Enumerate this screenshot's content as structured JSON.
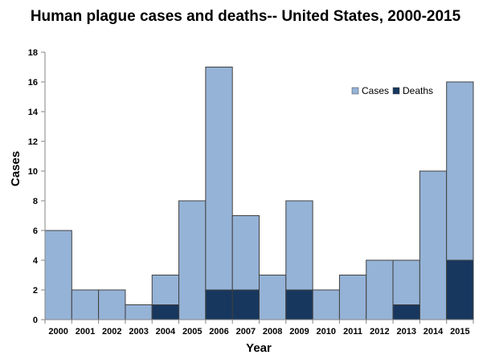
{
  "chart_data": {
    "type": "bar",
    "title": "Human plague cases and deaths-- United States, 2000-2015",
    "xlabel": "Year",
    "ylabel": "Cases",
    "ylim": [
      0,
      18
    ],
    "yticks": [
      0,
      2,
      4,
      6,
      8,
      10,
      12,
      14,
      16,
      18
    ],
    "categories": [
      "2000",
      "2001",
      "2002",
      "2003",
      "2004",
      "2005",
      "2006",
      "2007",
      "2008",
      "2009",
      "2010",
      "2011",
      "2012",
      "2013",
      "2014",
      "2015"
    ],
    "series": [
      {
        "name": "Cases",
        "color": "#95B3D7",
        "values": [
          6,
          2,
          2,
          1,
          3,
          8,
          17,
          7,
          3,
          8,
          2,
          3,
          4,
          4,
          10,
          16
        ]
      },
      {
        "name": "Deaths",
        "color": "#17375E",
        "values": [
          0,
          0,
          0,
          0,
          1,
          0,
          2,
          2,
          0,
          2,
          0,
          0,
          0,
          1,
          0,
          4
        ]
      }
    ],
    "bar_layout": "overlaid, no gaps",
    "grid": false,
    "legend_position": "top-right"
  }
}
